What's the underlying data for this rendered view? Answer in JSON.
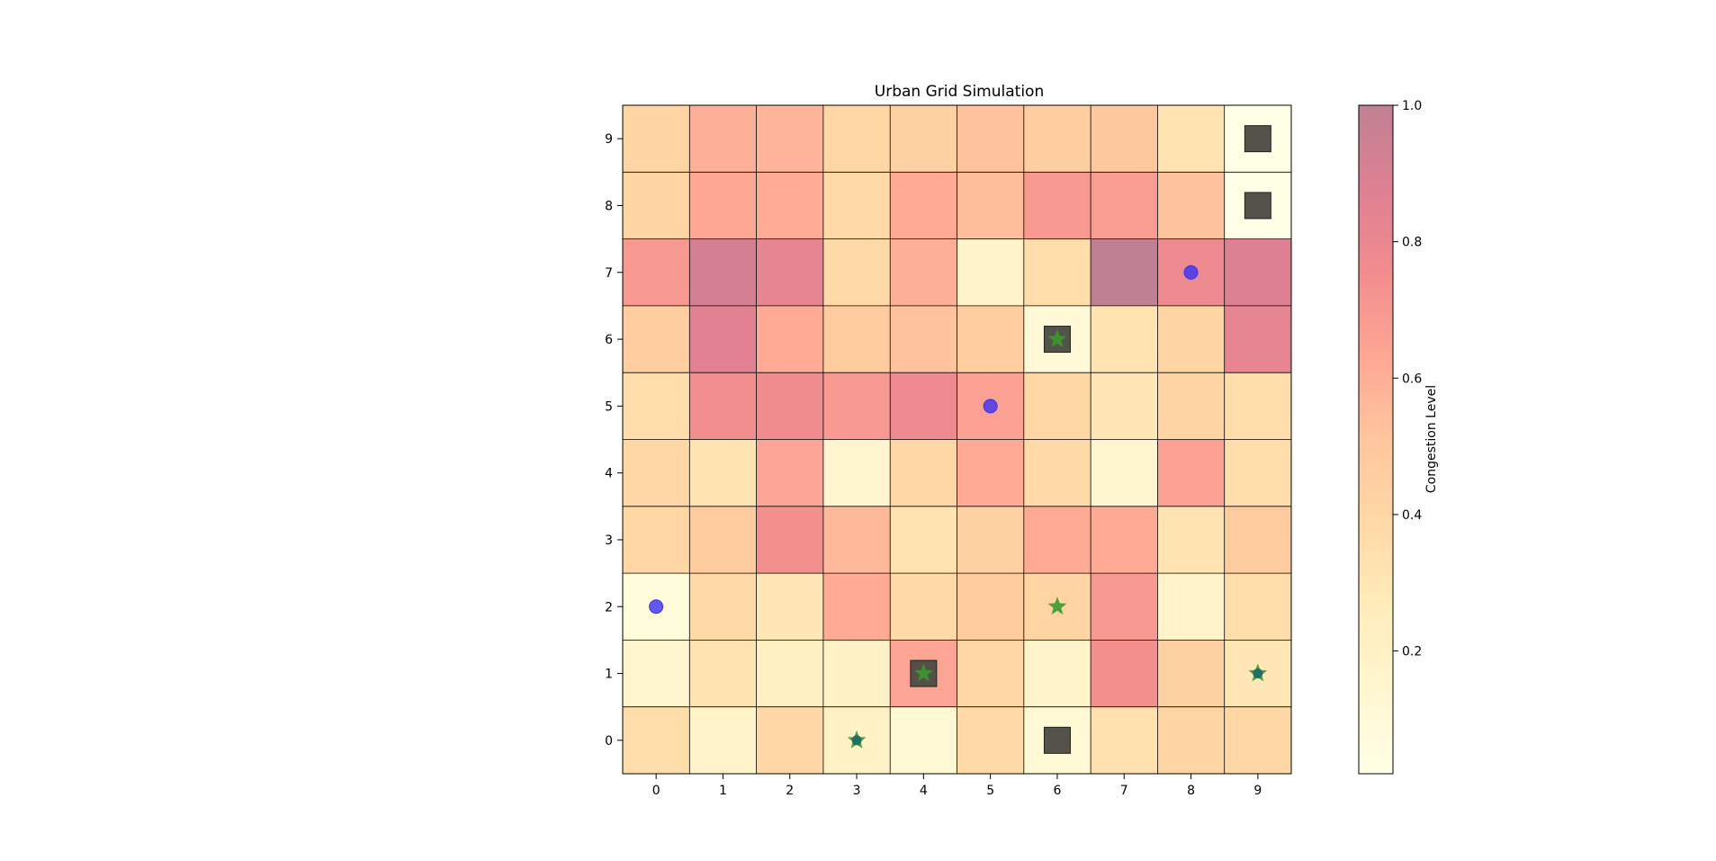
{
  "chart_data": {
    "type": "heatmap",
    "title": "Urban Grid Simulation",
    "xlabel": "",
    "ylabel": "",
    "x_ticks": [
      0,
      1,
      2,
      3,
      4,
      5,
      6,
      7,
      8,
      9
    ],
    "y_ticks": [
      0,
      1,
      2,
      3,
      4,
      5,
      6,
      7,
      8,
      9
    ],
    "xlim": [
      -0.5,
      9.5
    ],
    "ylim": [
      -0.5,
      9.5
    ],
    "grid": true,
    "colorbar": {
      "label": "Congestion Level",
      "range": [
        0.02,
        1.0
      ],
      "ticks": [
        0.2,
        0.4,
        0.6,
        0.8,
        1.0
      ],
      "tick_labels": [
        "0.2",
        "0.4",
        "0.6",
        "0.8",
        "1.0"
      ],
      "colormap": "YlOrRd",
      "cell_alpha": 0.5
    },
    "congestion_rows_top_to_bottom": [
      [
        0.42,
        0.6,
        0.58,
        0.4,
        0.44,
        0.52,
        0.46,
        0.5,
        0.32,
        0.02
      ],
      [
        0.42,
        0.63,
        0.61,
        0.38,
        0.62,
        0.54,
        0.7,
        0.68,
        0.52,
        0.02
      ],
      [
        0.7,
        0.92,
        0.82,
        0.38,
        0.6,
        0.18,
        0.36,
        1.0,
        0.78,
        0.88
      ],
      [
        0.46,
        0.86,
        0.62,
        0.48,
        0.52,
        0.46,
        0.1,
        0.32,
        0.42,
        0.82
      ],
      [
        0.36,
        0.75,
        0.76,
        0.7,
        0.78,
        0.66,
        0.4,
        0.3,
        0.42,
        0.36
      ],
      [
        0.4,
        0.32,
        0.64,
        0.14,
        0.4,
        0.62,
        0.38,
        0.14,
        0.66,
        0.36
      ],
      [
        0.4,
        0.48,
        0.74,
        0.56,
        0.32,
        0.44,
        0.62,
        0.62,
        0.32,
        0.48
      ],
      [
        0.08,
        0.38,
        0.3,
        0.62,
        0.38,
        0.48,
        0.42,
        0.7,
        0.18,
        0.36
      ],
      [
        0.14,
        0.32,
        0.22,
        0.2,
        0.64,
        0.4,
        0.18,
        0.74,
        0.44,
        0.3
      ],
      [
        0.36,
        0.18,
        0.4,
        0.2,
        0.12,
        0.38,
        0.12,
        0.34,
        0.42,
        0.4
      ]
    ],
    "buildings": [
      {
        "x": 9,
        "y": 9
      },
      {
        "x": 9,
        "y": 8
      },
      {
        "x": 6,
        "y": 6
      },
      {
        "x": 4,
        "y": 1
      },
      {
        "x": 6,
        "y": 0
      }
    ],
    "vehicles": [
      {
        "x": 8,
        "y": 7
      },
      {
        "x": 5,
        "y": 5
      },
      {
        "x": 0,
        "y": 2
      }
    ],
    "stars": [
      {
        "x": 6,
        "y": 6
      },
      {
        "x": 6,
        "y": 2
      },
      {
        "x": 4,
        "y": 1
      },
      {
        "x": 9,
        "y": 1
      },
      {
        "x": 3,
        "y": 0
      }
    ],
    "teal_markers": [
      {
        "x": 9,
        "y": 1
      },
      {
        "x": 3,
        "y": 0
      }
    ],
    "colors": {
      "building": "#4b4a42",
      "vehicle": "#3b2ff2",
      "star": "#3a9a2a",
      "teal": "#1c6a6a",
      "grid_line": "#000000"
    }
  }
}
